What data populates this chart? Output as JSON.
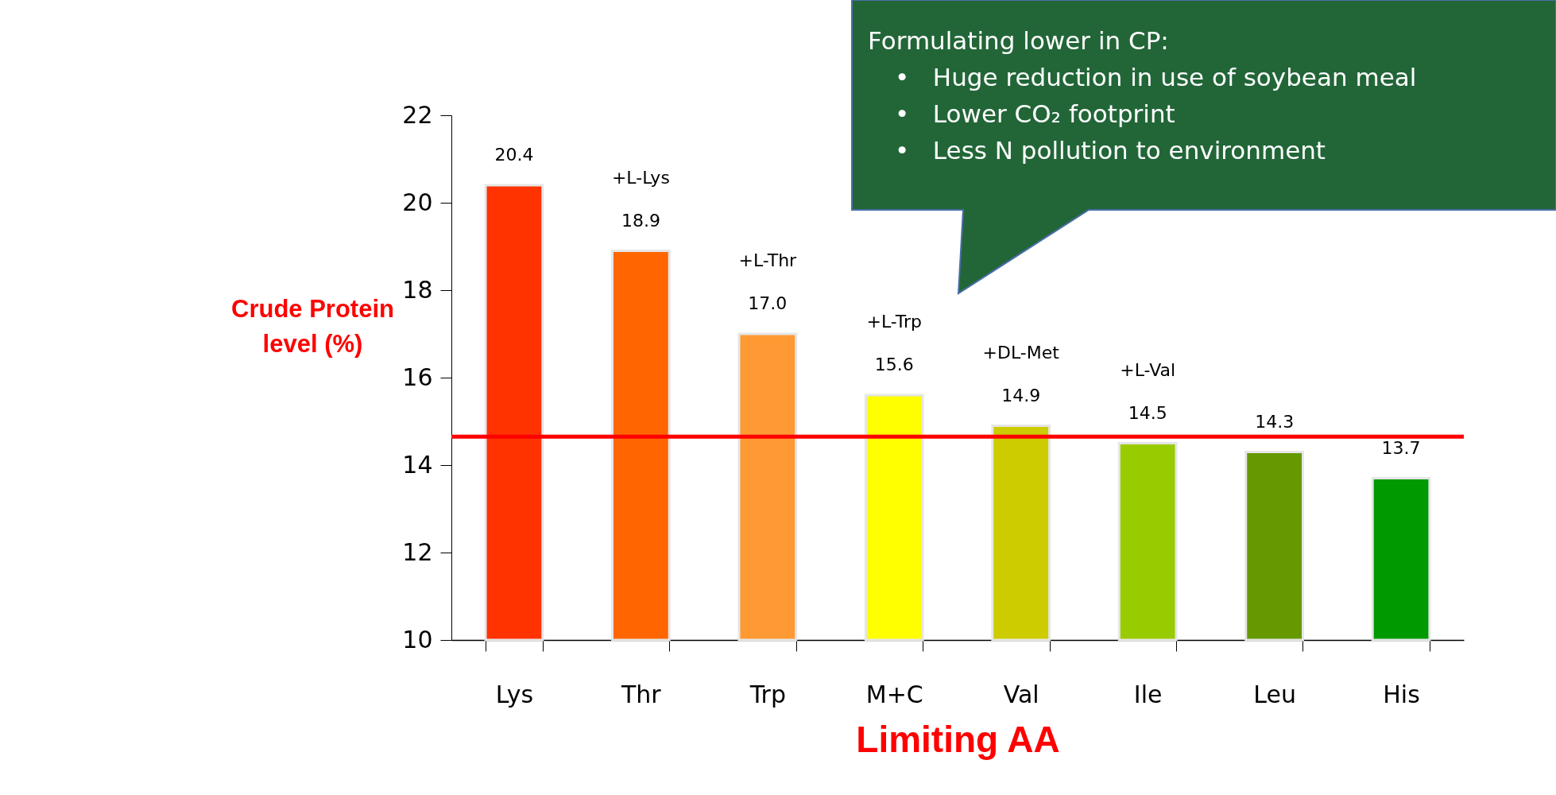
{
  "chart_data": {
    "type": "bar",
    "xlabel": "Limiting AA",
    "ylabel": "Crude Protein level (%)",
    "categories": [
      "Lys",
      "Thr",
      "Trp",
      "M+C",
      "Val",
      "Ile",
      "Leu",
      "His"
    ],
    "values": [
      20.4,
      18.9,
      17.0,
      15.6,
      14.9,
      14.5,
      14.3,
      13.7
    ],
    "value_labels": [
      "20.4",
      "18.9",
      "17.0",
      "15.6",
      "14.9",
      "14.5",
      "14.3",
      "13.7"
    ],
    "colors": [
      "#ff3300",
      "#ff6600",
      "#ff9933",
      "#ffff00",
      "#cccc00",
      "#99cc00",
      "#669900",
      "#009900"
    ],
    "ylim": [
      10,
      22
    ],
    "yticks": [
      10,
      12,
      14,
      16,
      18,
      20,
      22
    ],
    "grid": false,
    "ref_lines": [
      {
        "axis": "y",
        "value": 14.65,
        "color": "#ff0000"
      }
    ],
    "annotations": [
      "+L-Lys",
      "+L-Thr",
      "+L-Trp",
      "+DL-Met",
      "+L-Val",
      "Formulating lower in CP:",
      "•   Huge reduction in use of soybean meal",
      "•   Lower CO₂ footprint",
      "•   Less N pollution to environment"
    ]
  }
}
